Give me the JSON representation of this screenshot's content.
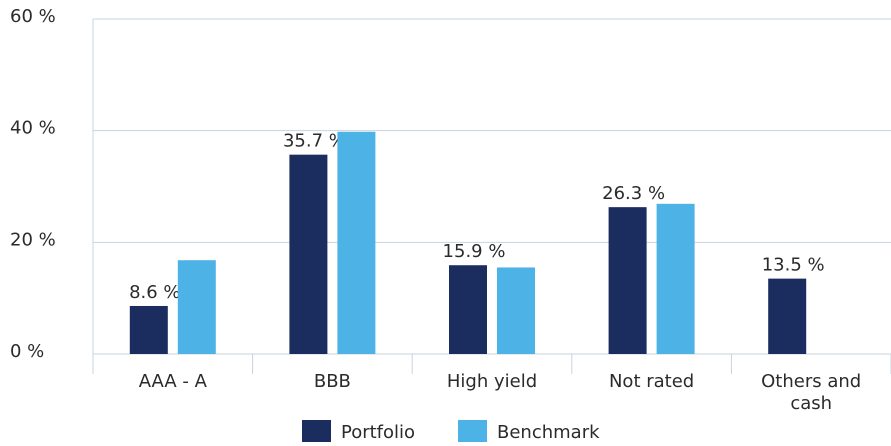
{
  "chart_data": {
    "type": "bar",
    "categories": [
      "AAA - A",
      "BBB",
      "High yield",
      "Not rated",
      "Others and cash"
    ],
    "series": [
      {
        "name": "Portfolio",
        "color": "#1b2c5e",
        "values": [
          8.6,
          35.7,
          15.9,
          26.3,
          13.5
        ],
        "value_labels": [
          "8.6 %",
          "35.7 %",
          "15.9 %",
          "26.3 %",
          "13.5 %"
        ]
      },
      {
        "name": "Benchmark",
        "color": "#4db3e6",
        "values": [
          16.8,
          39.8,
          15.5,
          26.9,
          null
        ]
      }
    ],
    "ylim": [
      0,
      60
    ],
    "yticks": [
      {
        "value": 0,
        "label": "0 %"
      },
      {
        "value": 20,
        "label": "20 %"
      },
      {
        "value": 40,
        "label": "40 %"
      },
      {
        "value": 60,
        "label": "60 %"
      }
    ],
    "grid": true,
    "legend": "bottom"
  }
}
